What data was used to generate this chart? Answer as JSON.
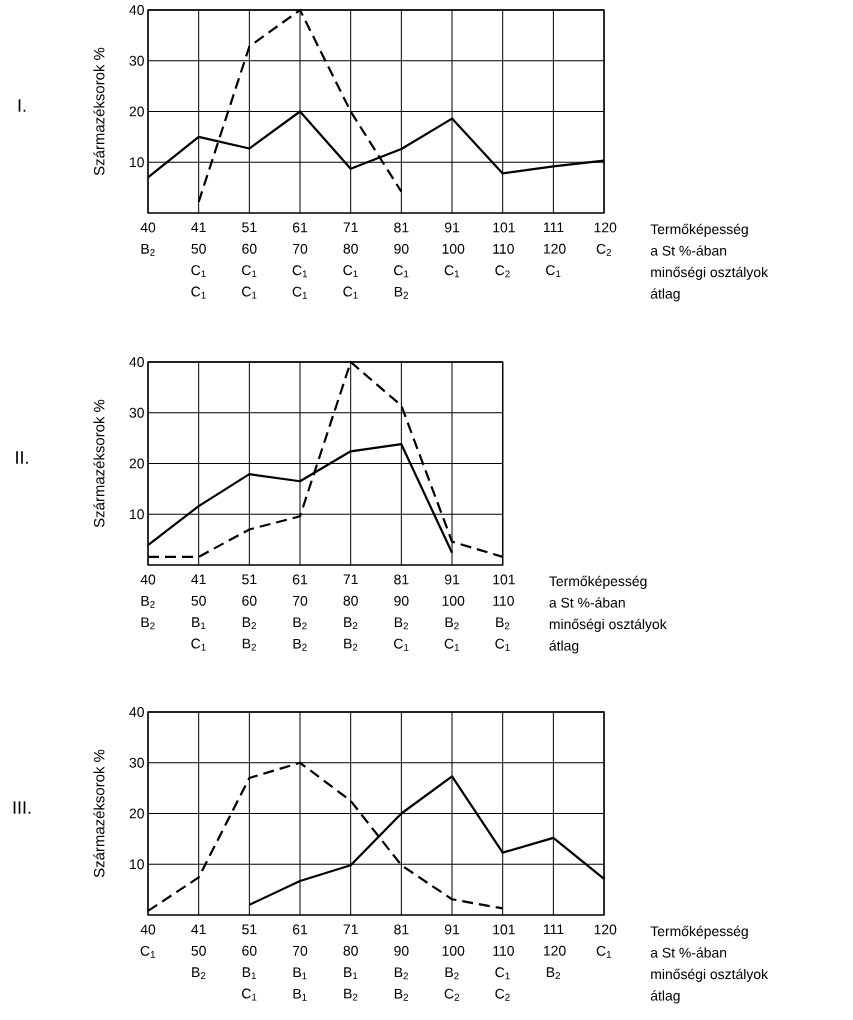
{
  "chart_data": [
    {
      "type": "line",
      "title": "I.",
      "ylabel": "Származéksorok %",
      "categories": [
        "40 B$_{2}$",
        "41 50 C$_{1}$ C$_{1}$",
        "51 60 C$_{1}$ C$_{1}$",
        "61 70 C$_{1}$ C$_{1}$",
        "71 80 C$_{1}$ C$_{1}$",
        "81 90 C$_{1}$ B$_{2}$",
        "91 100 C$_{1}$",
        "101 110 C$_{2}$",
        "111 120 C$_{1}$",
        "120 C$_{2}$"
      ],
      "series": [
        {
          "color": "#000000",
          "line_style": "solid",
          "values": [
            7,
            15,
            12.7,
            20,
            8.7,
            12.6,
            18.6,
            7.8,
            9.2,
            10.3
          ]
        },
        {
          "color": "#000000",
          "line_style": "dashed",
          "values": [
            null,
            2.2,
            32.8,
            40,
            20,
            4.2,
            null,
            null,
            null,
            null
          ]
        }
      ],
      "ylim": [
        0,
        40
      ],
      "yticks": [
        10,
        20,
        30,
        40
      ],
      "grid": true,
      "marker": "none",
      "annotations": [
        "Termőképesség",
        "a St %-ában",
        "minőségi osztályok",
        "átlag"
      ]
    },
    {
      "type": "line",
      "title": "II.",
      "ylabel": "Származéksorok %",
      "categories": [
        "40 B$_{2}$ B$_{2}$",
        "41 50 B$_{1}$ C$_{1}$",
        "51 60 B$_{2}$ B$_{2}$",
        "61 70 B$_{2}$ B$_{2}$",
        "71 80 B$_{2}$ B$_{2}$",
        "81 90 B$_{2}$ C$_{1}$",
        "91 100 B$_{2}$ C$_{1}$",
        "101 110 B$_{2}$ C$_{1}$"
      ],
      "series": [
        {
          "color": "#000000",
          "line_style": "solid",
          "values": [
            3.9,
            11.6,
            17.9,
            16.5,
            22.4,
            23.8,
            2.4,
            null
          ]
        },
        {
          "color": "#000000",
          "line_style": "dashed",
          "values": [
            1.6,
            1.6,
            7,
            9.6,
            40,
            31.4,
            4.6,
            1.6
          ]
        }
      ],
      "ylim": [
        0,
        40
      ],
      "yticks": [
        10,
        20,
        30,
        40
      ],
      "grid": true,
      "marker": "none",
      "annotations": [
        "Termőképesség",
        "a St %-ában",
        "minőségi osztályok",
        "átlag"
      ]
    },
    {
      "type": "line",
      "title": "III.",
      "ylabel": "Származéksorok %",
      "categories": [
        "40 C$_{1}$",
        "41 50 B$_{2}$",
        "51 60 B$_{1}$ C$_{1}$",
        "61 70 B$_{1}$ B$_{1}$",
        "71 80 B$_{1}$ B$_{2}$",
        "81 90 B$_{2}$ B$_{2}$",
        "91 100 B$_{2}$ C$_{2}$",
        "101 110 C$_{1}$ C$_{2}$",
        "111 120 B$_{2}$",
        "120 C$_{1}$"
      ],
      "series": [
        {
          "color": "#000000",
          "line_style": "solid",
          "values": [
            null,
            null,
            2,
            6.7,
            9.8,
            20,
            27.3,
            12.3,
            15.2,
            7.1
          ]
        },
        {
          "color": "#000000",
          "line_style": "dashed",
          "values": [
            0.8,
            7.4,
            27,
            30,
            22.5,
            9.8,
            3.1,
            1.3,
            null,
            null
          ]
        }
      ],
      "ylim": [
        0,
        40
      ],
      "yticks": [
        10,
        20,
        30,
        40
      ],
      "grid": true,
      "marker": "none",
      "annotations": [
        "Termőképesség",
        "a St %-ában",
        "minőségi osztályok",
        "átlag"
      ]
    }
  ]
}
